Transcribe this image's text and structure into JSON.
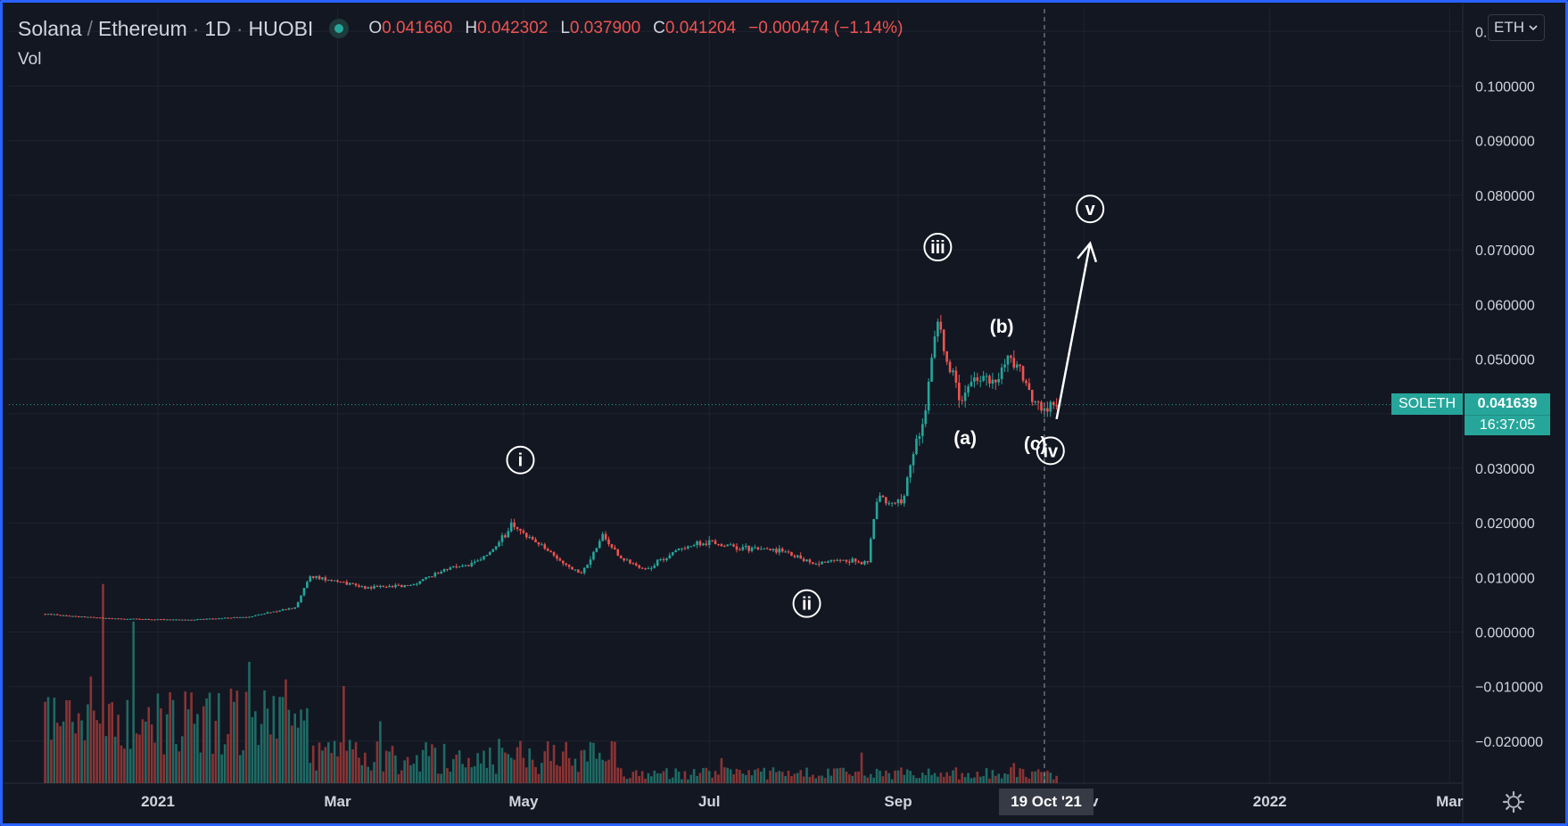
{
  "header": {
    "base": "Solana",
    "quote": "Ethereum",
    "interval": "1D",
    "exchange": "HUOBI",
    "open_label": "O",
    "open": "0.041660",
    "high_label": "H",
    "high": "0.042302",
    "low_label": "L",
    "low": "0.037900",
    "close_label": "C",
    "close": "0.041204",
    "change": "−0.000474 (−1.14%)",
    "volume_label": "Vol"
  },
  "currency_button": "ETH",
  "last_price": {
    "symbol": "SOLETH",
    "price": "0.041639",
    "countdown": "16:37:05"
  },
  "crosshair_date": "19 Oct '21",
  "colors": {
    "up": "#26a69a",
    "down": "#ef5350",
    "wave": "#ffffff",
    "background": "#131722",
    "frame": "#2962ff"
  },
  "icons": [
    "status-dot-icon",
    "chevron-down-icon",
    "settings-gear-icon"
  ],
  "chart_data": {
    "type": "line",
    "series_type": "candlestick-with-volume",
    "x_tick_labels": [
      "2021",
      "Mar",
      "May",
      "Jul",
      "Sep",
      "Nov",
      "2022",
      "Mar"
    ],
    "y_ticks": [
      {
        "value": -0.02,
        "label": "−0.020000"
      },
      {
        "value": -0.01,
        "label": "−0.010000"
      },
      {
        "value": 0.0,
        "label": "0.000000"
      },
      {
        "value": 0.01,
        "label": "0.010000"
      },
      {
        "value": 0.02,
        "label": "0.020000"
      },
      {
        "value": 0.03,
        "label": "0.030000"
      },
      {
        "value": 0.04,
        "label": "0.040000"
      },
      {
        "value": 0.05,
        "label": "0.050000"
      },
      {
        "value": 0.06,
        "label": "0.060000"
      },
      {
        "value": 0.07,
        "label": "0.070000"
      },
      {
        "value": 0.08,
        "label": "0.080000"
      },
      {
        "value": 0.09,
        "label": "0.090000"
      },
      {
        "value": 0.1,
        "label": "0.100000"
      },
      {
        "value": 0.11,
        "label": "0.110000"
      }
    ],
    "ylim": [
      -0.0275,
      0.1145
    ],
    "grid": true,
    "price_points": [
      {
        "x": "2020-11-25",
        "y": 0.0033
      },
      {
        "x": "2020-12-15",
        "y": 0.0025
      },
      {
        "x": "2021-01-10",
        "y": 0.0022
      },
      {
        "x": "2021-01-31",
        "y": 0.0028
      },
      {
        "x": "2021-02-15",
        "y": 0.0045
      },
      {
        "x": "2021-02-20",
        "y": 0.0102
      },
      {
        "x": "2021-02-28",
        "y": 0.0095
      },
      {
        "x": "2021-03-10",
        "y": 0.0082
      },
      {
        "x": "2021-03-25",
        "y": 0.0085
      },
      {
        "x": "2021-04-05",
        "y": 0.0115
      },
      {
        "x": "2021-04-15",
        "y": 0.0125
      },
      {
        "x": "2021-04-22",
        "y": 0.0155
      },
      {
        "x": "2021-04-27",
        "y": 0.0195
      },
      {
        "x": "2021-05-05",
        "y": 0.0165
      },
      {
        "x": "2021-05-12",
        "y": 0.0135
      },
      {
        "x": "2021-05-20",
        "y": 0.0105
      },
      {
        "x": "2021-05-27",
        "y": 0.0175
      },
      {
        "x": "2021-06-02",
        "y": 0.0135
      },
      {
        "x": "2021-06-10",
        "y": 0.0115
      },
      {
        "x": "2021-06-22",
        "y": 0.0155
      },
      {
        "x": "2021-07-01",
        "y": 0.0165
      },
      {
        "x": "2021-07-10",
        "y": 0.0155
      },
      {
        "x": "2021-07-25",
        "y": 0.0148
      },
      {
        "x": "2021-08-05",
        "y": 0.0125
      },
      {
        "x": "2021-08-13",
        "y": 0.0135
      },
      {
        "x": "2021-08-22",
        "y": 0.0125
      },
      {
        "x": "2021-08-25",
        "y": 0.0245
      },
      {
        "x": "2021-09-02",
        "y": 0.0235
      },
      {
        "x": "2021-09-06",
        "y": 0.0325
      },
      {
        "x": "2021-09-10",
        "y": 0.0415
      },
      {
        "x": "2021-09-14",
        "y": 0.0575
      },
      {
        "x": "2021-09-17",
        "y": 0.0495
      },
      {
        "x": "2021-09-22",
        "y": 0.0415
      },
      {
        "x": "2021-09-26",
        "y": 0.0465
      },
      {
        "x": "2021-10-01",
        "y": 0.0455
      },
      {
        "x": "2021-10-08",
        "y": 0.0505
      },
      {
        "x": "2021-10-12",
        "y": 0.0465
      },
      {
        "x": "2021-10-15",
        "y": 0.0425
      },
      {
        "x": "2021-10-19",
        "y": 0.0405
      },
      {
        "x": "2021-10-23",
        "y": 0.0416
      }
    ],
    "annotations": [
      {
        "text": "i",
        "x": "2021-04-30",
        "y": 0.0315,
        "circled": true
      },
      {
        "text": "ii",
        "x": "2021-08-02",
        "y": 0.0052,
        "circled": true
      },
      {
        "text": "iii",
        "x": "2021-09-14",
        "y": 0.0705,
        "circled": true
      },
      {
        "text": "(a)",
        "x": "2021-09-23",
        "y": 0.0355,
        "circled": false
      },
      {
        "text": "(b)",
        "x": "2021-10-05",
        "y": 0.056,
        "circled": false
      },
      {
        "text": "(c)",
        "x": "2021-10-16",
        "y": 0.0345,
        "circled": false
      },
      {
        "text": "iv",
        "x": "2021-10-21",
        "y": 0.0332,
        "circled": true
      },
      {
        "text": "v",
        "x": "2021-11-03",
        "y": 0.0775,
        "circled": true
      }
    ],
    "projection_arrow": {
      "from": {
        "x": "2021-10-23",
        "y": 0.039
      },
      "to": {
        "x": "2021-11-03",
        "y": 0.0712
      }
    }
  }
}
